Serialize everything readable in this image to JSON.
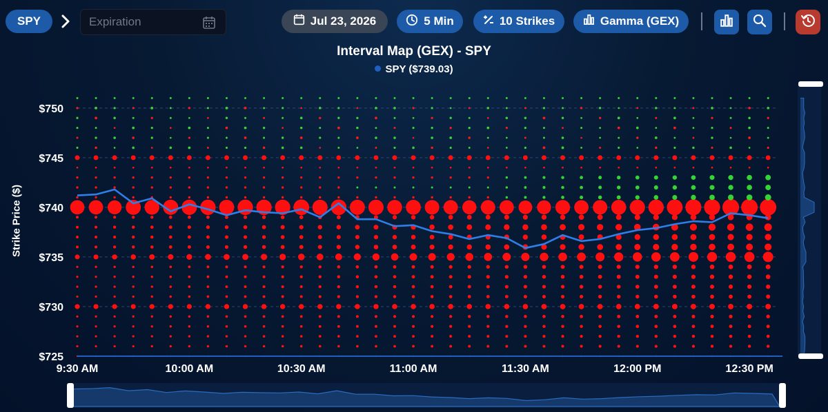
{
  "toolbar": {
    "symbol": "SPY",
    "expiration_placeholder": "Expiration",
    "date": "Jul 23, 2026",
    "interval": "5 Min",
    "strikes": "10 Strikes",
    "metric": "Gamma (GEX)",
    "colors": {
      "pill": "#1d5aa8",
      "date_pill": "#3a4556",
      "reset": "#b93a2e"
    },
    "icons": [
      "chevron-right-icon",
      "calendar-icon",
      "clock-icon",
      "percent-icon",
      "bar-chart-icon",
      "zoom-icon",
      "reset-icon"
    ]
  },
  "chart_data": {
    "type": "scatter",
    "title": "Interval Map (GEX) - SPY",
    "legend": "SPY ($739.03)",
    "ylabel": "Strike Price ($)",
    "xlabel": "",
    "y_ticks": [
      "$725",
      "$730",
      "$735",
      "$740",
      "$745",
      "$750"
    ],
    "x_ticks": [
      "9:30 AM",
      "10:00 AM",
      "10:30 AM",
      "11:00 AM",
      "11:30 AM",
      "12:00 PM",
      "12:30 PM"
    ],
    "ylim": [
      725,
      752
    ],
    "x_range_minutes": [
      0,
      187
    ],
    "grid": "horizontal dashed at $5 strikes",
    "colors": {
      "positive": "#39d639",
      "negative": "#ff0000",
      "spot_line": "#2f7fe8"
    },
    "price_series": {
      "name": "SPY",
      "minutes": [
        0,
        5,
        10,
        15,
        20,
        25,
        30,
        35,
        40,
        45,
        50,
        55,
        60,
        65,
        70,
        75,
        80,
        85,
        90,
        95,
        100,
        105,
        110,
        115,
        120,
        125,
        130,
        135,
        140,
        145,
        150,
        155,
        160,
        165,
        170,
        175,
        180,
        185
      ],
      "values": [
        741.2,
        741.3,
        741.8,
        740.4,
        740.9,
        739.6,
        740.3,
        739.8,
        739.2,
        739.7,
        739.5,
        739.4,
        739.8,
        739.0,
        740.4,
        738.8,
        738.8,
        738.1,
        738.2,
        737.6,
        737.3,
        736.8,
        737.2,
        736.9,
        735.9,
        736.3,
        737.2,
        736.6,
        736.8,
        737.3,
        737.7,
        737.9,
        738.3,
        738.6,
        738.5,
        739.4,
        739.2,
        738.9
      ]
    },
    "gex_description": "Bubbles at every $1 strike for each 5-minute interval; red = negative gamma, green = positive gamma. Largest negative exposure at $740, secondary at $735, $730 and $745; positive gamma appears at $741-$743 late in the session.",
    "gex_levels": [
      {
        "strike": 740,
        "sign": "neg",
        "magnitude": 1.0
      },
      {
        "strike": 735,
        "sign": "neg",
        "magnitude": 0.55
      },
      {
        "strike": 738,
        "sign": "neg",
        "magnitude": 0.45
      },
      {
        "strike": 736,
        "sign": "neg",
        "magnitude": 0.4
      },
      {
        "strike": 737,
        "sign": "neg",
        "magnitude": 0.35
      },
      {
        "strike": 730,
        "sign": "neg",
        "magnitude": 0.3
      },
      {
        "strike": 745,
        "sign": "neg",
        "magnitude": 0.28
      },
      {
        "strike": 739,
        "sign": "neg",
        "magnitude": 0.3
      }
    ]
  }
}
